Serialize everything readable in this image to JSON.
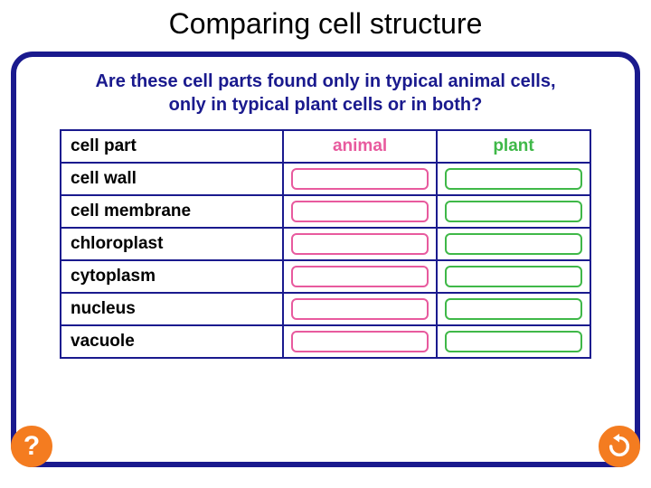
{
  "title": "Comparing cell structure",
  "question_line1": "Are these cell parts found only in typical animal cells,",
  "question_line2": "only in typical plant cells or in both?",
  "colors": {
    "frame_border": "#1a1a8e",
    "question_text": "#1a1a8e",
    "animal": "#e85a9e",
    "plant": "#3fb848",
    "button_bg": "#f47c20",
    "button_fg": "#ffffff"
  },
  "table": {
    "header_part": "cell part",
    "header_animal": "animal",
    "header_plant": "plant",
    "rows": [
      {
        "label": "cell wall"
      },
      {
        "label": "cell membrane"
      },
      {
        "label": "chloroplast"
      },
      {
        "label": "cytoplasm"
      },
      {
        "label": "nucleus"
      },
      {
        "label": "vacuole"
      }
    ]
  },
  "help_label": "?",
  "reset_label": "reset"
}
